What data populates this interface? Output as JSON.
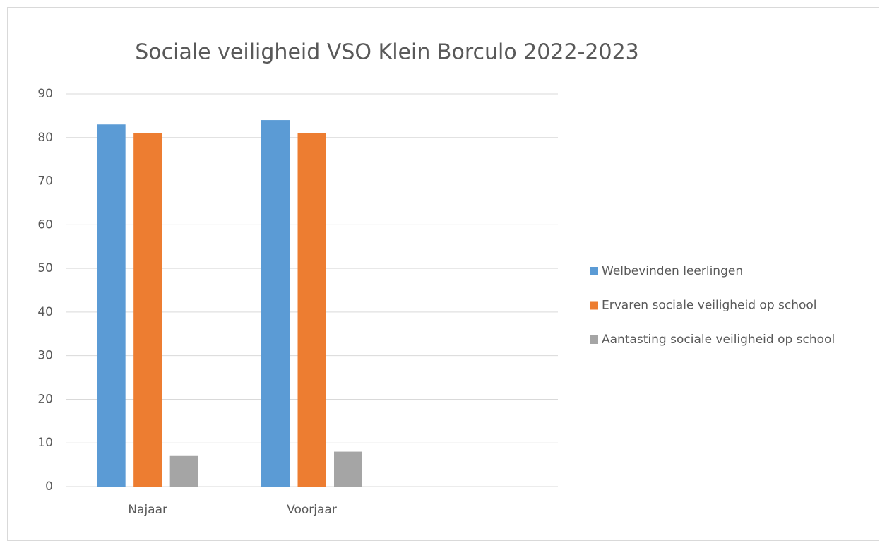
{
  "chart_data": {
    "type": "bar",
    "title": "Sociale veiligheid VSO Klein Borculo 2022-2023",
    "categories": [
      "Najaar",
      "Voorjaar",
      null
    ],
    "series": [
      {
        "name": "Welbevinden leerlingen",
        "color": "#5b9bd5",
        "values": [
          83,
          84,
          null
        ]
      },
      {
        "name": "Ervaren sociale veiligheid op school",
        "color": "#ed7d31",
        "values": [
          81,
          81,
          null
        ]
      },
      {
        "name": "Aantasting sociale veiligheid op school",
        "color": "#a5a5a5",
        "values": [
          7,
          8,
          null
        ]
      }
    ],
    "ylim": [
      0,
      90
    ],
    "yticks": [
      0,
      10,
      20,
      30,
      40,
      50,
      60,
      70,
      80,
      90
    ],
    "grid": true,
    "legend": "right"
  }
}
